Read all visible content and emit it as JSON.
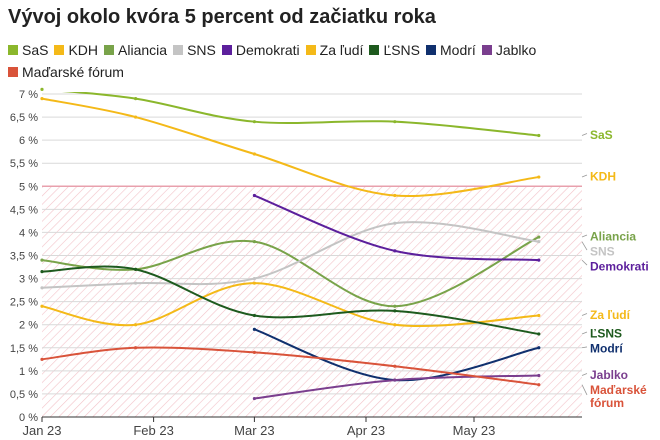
{
  "chart_data": {
    "type": "line",
    "title": "Vývoj okolo kvóra 5 percent od začiatku roka",
    "x_ticks": [
      "Jan 23",
      "Feb 23",
      "Mar 23",
      "Apr 23",
      "May 23"
    ],
    "ylim": [
      0,
      7
    ],
    "y_ticks": [
      "0 %",
      "0,5 %",
      "1 %",
      "1,5 %",
      "2 %",
      "2,5 %",
      "3 %",
      "3,5 %",
      "4 %",
      "4,5 %",
      "5 %",
      "5,5 %",
      "6 %",
      "6,5 %",
      "7 %"
    ],
    "threshold": 5,
    "grid": true,
    "legend_position": "top",
    "series": [
      {
        "name": "SaS",
        "label": "SaS",
        "color": "#8bb72c",
        "points": [
          [
            "2023-01-01",
            7.1
          ],
          [
            "2023-01-27",
            6.9
          ],
          [
            "2023-03-01",
            6.4
          ],
          [
            "2023-04-09",
            6.4
          ],
          [
            "2023-05-19",
            6.1
          ]
        ]
      },
      {
        "name": "KDH",
        "label": "KDH",
        "color": "#f4b918",
        "points": [
          [
            "2023-01-01",
            6.9
          ],
          [
            "2023-01-27",
            6.5
          ],
          [
            "2023-03-01",
            5.7
          ],
          [
            "2023-04-09",
            4.8
          ],
          [
            "2023-05-19",
            5.2
          ]
        ]
      },
      {
        "name": "Aliancia",
        "label": "Aliancia",
        "color": "#79a34a",
        "points": [
          [
            "2023-01-01",
            3.4
          ],
          [
            "2023-01-27",
            3.2
          ],
          [
            "2023-03-01",
            3.8
          ],
          [
            "2023-04-09",
            2.4
          ],
          [
            "2023-05-19",
            3.9
          ]
        ]
      },
      {
        "name": "SNS",
        "label": "SNS",
        "color": "#c4c4c4",
        "points": [
          [
            "2023-01-01",
            2.8
          ],
          [
            "2023-01-27",
            2.9
          ],
          [
            "2023-03-01",
            3.0
          ],
          [
            "2023-04-09",
            4.2
          ],
          [
            "2023-05-19",
            3.8
          ]
        ]
      },
      {
        "name": "Demokrati",
        "label": "Demokrati",
        "color": "#5c1f9c",
        "points": [
          [
            "2023-03-01",
            4.8
          ],
          [
            "2023-04-09",
            3.6
          ],
          [
            "2023-05-19",
            3.4
          ]
        ]
      },
      {
        "name": "Za ľudí",
        "label": "Za ľudí",
        "color": "#f4b918",
        "points": [
          [
            "2023-01-01",
            2.4
          ],
          [
            "2023-01-27",
            2.0
          ],
          [
            "2023-03-01",
            2.9
          ],
          [
            "2023-04-09",
            2.0
          ],
          [
            "2023-05-19",
            2.2
          ]
        ]
      },
      {
        "name": "ĽSNS",
        "label": "ĽSNS",
        "color": "#1e5a1e",
        "points": [
          [
            "2023-01-01",
            3.15
          ],
          [
            "2023-01-27",
            3.2
          ],
          [
            "2023-03-01",
            2.2
          ],
          [
            "2023-04-09",
            2.3
          ],
          [
            "2023-05-19",
            1.8
          ]
        ]
      },
      {
        "name": "Modrí",
        "label": "Modrí",
        "color": "#10306e",
        "points": [
          [
            "2023-03-01",
            1.9
          ],
          [
            "2023-04-09",
            0.8
          ],
          [
            "2023-05-19",
            1.5
          ]
        ]
      },
      {
        "name": "Jablko",
        "label": "Jablko",
        "color": "#7a3e8e",
        "points": [
          [
            "2023-03-01",
            0.4
          ],
          [
            "2023-04-09",
            0.8
          ],
          [
            "2023-05-19",
            0.9
          ]
        ]
      },
      {
        "name": "Maďarské fórum",
        "label": "Maďarské fórum",
        "color": "#d9533a",
        "points": [
          [
            "2023-01-01",
            1.25
          ],
          [
            "2023-01-27",
            1.5
          ],
          [
            "2023-03-01",
            1.4
          ],
          [
            "2023-04-09",
            1.1
          ],
          [
            "2023-05-19",
            0.7
          ]
        ]
      }
    ]
  }
}
